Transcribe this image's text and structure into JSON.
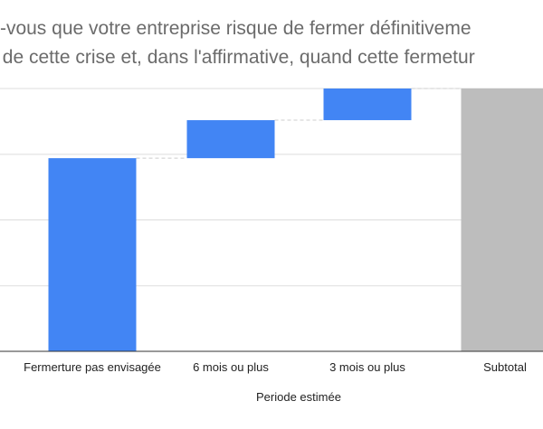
{
  "chart_data": {
    "type": "waterfall",
    "title_lines": [
      "z-vous que votre entreprise risque de fermer définitiveme",
      "n de cette crise et, dans l'affirmative, quand cette fermetur"
    ],
    "xlabel": "Periode estimée",
    "ylabel": "",
    "categories": [
      "Fermerture pas envisagée",
      "6 mois ou plus",
      "3 mois ou plus",
      "Subtotal"
    ],
    "steps": [
      {
        "label": "Fermerture pas envisagée",
        "kind": "increase",
        "value": 61
      },
      {
        "label": "6 mois ou plus",
        "kind": "increase",
        "value": 12
      },
      {
        "label": "3 mois ou plus",
        "kind": "increase",
        "value": 10
      },
      {
        "label": "Subtotal",
        "kind": "total",
        "value": 83
      }
    ],
    "ylim": [
      0,
      83
    ],
    "gridlines": [
      0,
      20.7,
      41.5,
      62.2,
      83
    ],
    "grid": true,
    "connectors": true,
    "colors": {
      "increase": "#4285f4",
      "total": "#bdbdbd",
      "grid": "#dddddd",
      "connector": "#cccccc",
      "axis": "#333333"
    }
  }
}
